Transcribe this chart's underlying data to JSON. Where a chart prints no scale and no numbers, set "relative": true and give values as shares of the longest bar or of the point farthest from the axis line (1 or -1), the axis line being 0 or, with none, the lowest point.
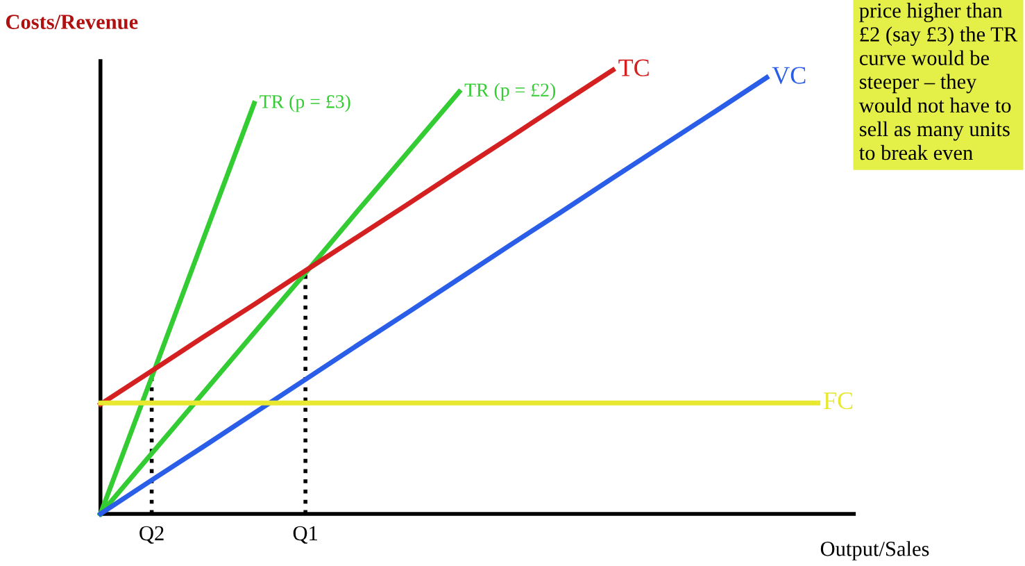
{
  "chart_data": {
    "type": "line",
    "relative": true,
    "ylabel": "Costs/Revenue",
    "xlabel": "Output/Sales",
    "legend": false,
    "marker": "none",
    "line_style": "solid",
    "categories": [
      null,
      "Q2",
      null,
      null,
      "Q1",
      null,
      null,
      null,
      null,
      null,
      null,
      null,
      null,
      null,
      null
    ],
    "series": [
      {
        "name": "TR (p = £3)",
        "color": "#33cc33",
        "values": [
          0,
          0.308,
          0.617,
          0.925,
          null,
          null,
          null,
          null,
          null,
          null,
          null,
          null,
          null,
          null,
          null
        ]
      },
      {
        "name": "TR (p = £2)",
        "color": "#33cc33",
        "values": [
          0,
          0.136,
          0.272,
          0.408,
          0.543,
          0.68,
          0.815,
          0.951,
          null,
          null,
          null,
          null,
          null,
          null,
          null
        ]
      },
      {
        "name": "TC",
        "color": "#d42020",
        "values": [
          0.247,
          0.322,
          0.398,
          0.472,
          0.548,
          0.623,
          0.698,
          0.774,
          0.849,
          0.925,
          1,
          null,
          null,
          null,
          null
        ]
      },
      {
        "name": "VC",
        "color": "#2a5ee8",
        "values": [
          0,
          0.076,
          0.151,
          0.227,
          0.303,
          0.379,
          0.454,
          0.53,
          0.606,
          0.681,
          0.757,
          0.832,
          0.907,
          0.983,
          null
        ]
      },
      {
        "name": "FC",
        "color": "#e8e830",
        "values": [
          0.25,
          0.25,
          0.25,
          0.25,
          0.25,
          0.25,
          0.25,
          0.25,
          0.25,
          0.25,
          0.25,
          0.25,
          0.25,
          0.25,
          0.25
        ]
      }
    ],
    "ref_lines": [
      {
        "axis": "x",
        "value": "Q2",
        "color": "#000000",
        "line_style": "dotted"
      },
      {
        "axis": "x",
        "value": "Q1",
        "color": "#000000",
        "line_style": "dotted"
      }
    ],
    "annotations": [
      "price higher than £2 (say £3) the TR curve would be steeper – they would not have to sell as many units to break even"
    ]
  }
}
